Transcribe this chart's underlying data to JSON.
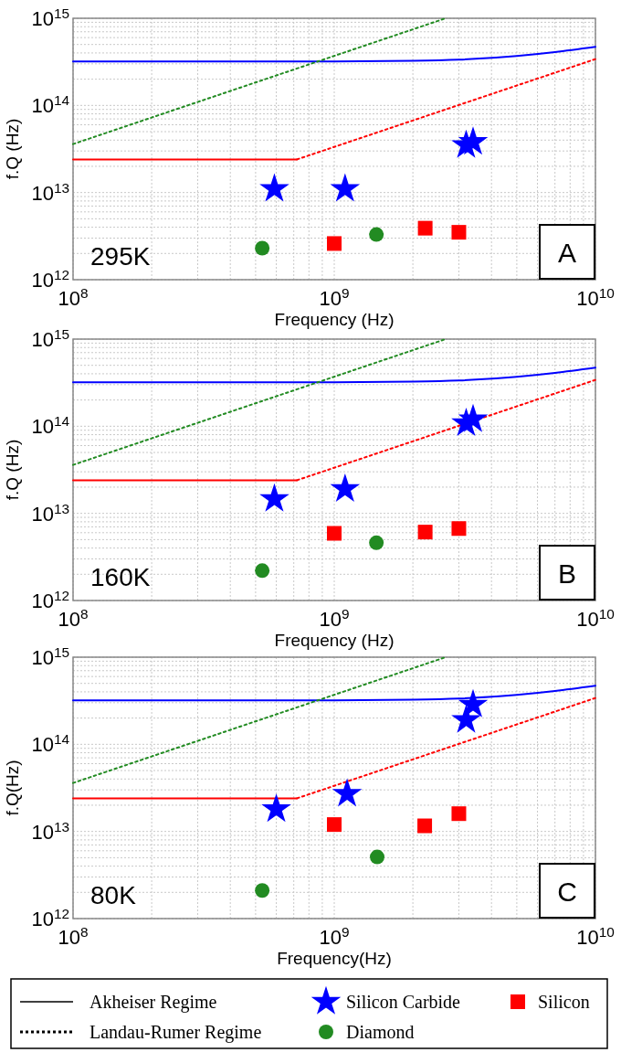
{
  "chart_data": [
    {
      "type": "scatter",
      "xlabel": "Frequency (Hz)",
      "ylabel": "f.Q (Hz)",
      "log": "xy",
      "grid": true,
      "xlim": [
        100000000.0,
        10000000000.0
      ],
      "ylim": [
        1000000000000.0,
        1000000000000000.0
      ],
      "xticks": [
        {
          "value": 100000000.0,
          "label": "10$^{8}$"
        },
        {
          "value": 200000000.0,
          "label": null
        },
        {
          "value": 300000000.0,
          "label": null
        },
        {
          "value": 400000000.0,
          "label": null
        },
        {
          "value": 500000000.0,
          "label": null
        },
        {
          "value": 600000000.0,
          "label": null
        },
        {
          "value": 700000000.0,
          "label": null
        },
        {
          "value": 800000000.0,
          "label": null
        },
        {
          "value": 900000000.0,
          "label": null
        },
        {
          "value": 1000000000.0,
          "label": "10$^{9}$"
        },
        {
          "value": 2000000000.0,
          "label": null
        },
        {
          "value": 3000000000.0,
          "label": null
        },
        {
          "value": 4000000000.0,
          "label": null
        },
        {
          "value": 5000000000.0,
          "label": null
        },
        {
          "value": 6000000000.0,
          "label": null
        },
        {
          "value": 7000000000.0,
          "label": null
        },
        {
          "value": 8000000000.0,
          "label": null
        },
        {
          "value": 9000000000.0,
          "label": null
        },
        {
          "value": 10000000000.0,
          "label": "10$^{10}$"
        }
      ],
      "yticks": [
        {
          "value": 1000000000000.0,
          "label": "10$^{12}$"
        },
        {
          "value": 2000000000000.0,
          "label": null
        },
        {
          "value": 3000000000000.0,
          "label": null
        },
        {
          "value": 4000000000000.0,
          "label": null
        },
        {
          "value": 5000000000000.0,
          "label": null
        },
        {
          "value": 6000000000000.0,
          "label": null
        },
        {
          "value": 7000000000000.0,
          "label": null
        },
        {
          "value": 8000000000000.0,
          "label": null
        },
        {
          "value": 9000000000000.0,
          "label": null
        },
        {
          "value": 10000000000000.0,
          "label": "10$^{13}$"
        },
        {
          "value": 20000000000000.0,
          "label": null
        },
        {
          "value": 30000000000000.0,
          "label": null
        },
        {
          "value": 40000000000000.0,
          "label": null
        },
        {
          "value": 50000000000000.0,
          "label": null
        },
        {
          "value": 60000000000000.0,
          "label": null
        },
        {
          "value": 70000000000000.0,
          "label": null
        },
        {
          "value": 80000000000000.0,
          "label": null
        },
        {
          "value": 90000000000000.0,
          "label": null
        },
        {
          "value": 100000000000000.0,
          "label": "10$^{14}$"
        },
        {
          "value": 200000000000000.0,
          "label": null
        },
        {
          "value": 300000000000000.0,
          "label": null
        },
        {
          "value": 400000000000000.0,
          "label": null
        },
        {
          "value": 500000000000000.0,
          "label": null
        },
        {
          "value": 600000000000000.0,
          "label": null
        },
        {
          "value": 700000000000000.0,
          "label": null
        },
        {
          "value": 800000000000000.0,
          "label": null
        },
        {
          "value": 900000000000000.0,
          "label": null
        },
        {
          "value": 1000000000000000.0,
          "label": "10$^{15}$"
        }
      ],
      "annotations": [
        "295K",
        "A"
      ],
      "series": [
        {
          "type": "line",
          "line_style": "solid",
          "color": "#0000ff",
          "x": [
            100000000.0,
            1000000000.0,
            2000000000.0,
            3000000000.0,
            5000000000.0,
            7000000000.0,
            10000000000.0
          ],
          "values": [
            320000000000000.0,
            320000000000000.0,
            325000000000000.0,
            335000000000000.0,
            370000000000000.0,
            410000000000000.0,
            470000000000000.0
          ]
        },
        {
          "type": "line",
          "line_style": "solid",
          "color": "#ff0000",
          "x": [
            100000000.0,
            720000000.0
          ],
          "values": [
            24000000000000.0,
            24000000000000.0
          ]
        },
        {
          "type": "line",
          "line_style": "dotted",
          "color": "#ff0000",
          "x": [
            720000000.0,
            10000000000.0
          ],
          "values": [
            24000000000000.0,
            340000000000000.0
          ]
        },
        {
          "type": "line",
          "line_style": "dotted",
          "color": "#228b22",
          "x": [
            100000000.0,
            2670000000.0
          ],
          "values": [
            36000000000000.0,
            1000000000000000.0
          ]
        },
        {
          "marker": "star",
          "color": "#0000ff",
          "x": [
            590000000.0,
            1100000000.0,
            3200000000.0,
            3400000000.0
          ],
          "values": [
            11000000000000.0,
            11000000000000.0,
            35000000000000.0,
            38000000000000.0
          ]
        },
        {
          "marker": "circle",
          "color": "#228b22",
          "x": [
            530000000.0,
            1450000000.0
          ],
          "values": [
            2300000000000.0,
            3300000000000.0
          ]
        },
        {
          "marker": "square",
          "color": "#ff0000",
          "x": [
            1000000000.0,
            2230000000.0,
            3000000000.0
          ],
          "values": [
            2600000000000.0,
            3900000000000.0,
            3500000000000.0
          ]
        }
      ]
    },
    {
      "type": "scatter",
      "xlabel": "Frequency (Hz)",
      "ylabel": "f.Q (Hz)",
      "log": "xy",
      "grid": true,
      "xlim": [
        100000000.0,
        10000000000.0
      ],
      "ylim": [
        1000000000000.0,
        1000000000000000.0
      ],
      "xticks": [
        {
          "value": 100000000.0,
          "label": "10$^{8}$"
        },
        {
          "value": 200000000.0,
          "label": null
        },
        {
          "value": 300000000.0,
          "label": null
        },
        {
          "value": 400000000.0,
          "label": null
        },
        {
          "value": 500000000.0,
          "label": null
        },
        {
          "value": 600000000.0,
          "label": null
        },
        {
          "value": 700000000.0,
          "label": null
        },
        {
          "value": 800000000.0,
          "label": null
        },
        {
          "value": 900000000.0,
          "label": null
        },
        {
          "value": 1000000000.0,
          "label": "10$^{9}$"
        },
        {
          "value": 2000000000.0,
          "label": null
        },
        {
          "value": 3000000000.0,
          "label": null
        },
        {
          "value": 4000000000.0,
          "label": null
        },
        {
          "value": 5000000000.0,
          "label": null
        },
        {
          "value": 6000000000.0,
          "label": null
        },
        {
          "value": 7000000000.0,
          "label": null
        },
        {
          "value": 8000000000.0,
          "label": null
        },
        {
          "value": 9000000000.0,
          "label": null
        },
        {
          "value": 10000000000.0,
          "label": "10$^{10}$"
        }
      ],
      "yticks": [
        {
          "value": 1000000000000.0,
          "label": "10$^{12}$"
        },
        {
          "value": 2000000000000.0,
          "label": null
        },
        {
          "value": 3000000000000.0,
          "label": null
        },
        {
          "value": 4000000000000.0,
          "label": null
        },
        {
          "value": 5000000000000.0,
          "label": null
        },
        {
          "value": 6000000000000.0,
          "label": null
        },
        {
          "value": 7000000000000.0,
          "label": null
        },
        {
          "value": 8000000000000.0,
          "label": null
        },
        {
          "value": 9000000000000.0,
          "label": null
        },
        {
          "value": 10000000000000.0,
          "label": "10$^{13}$"
        },
        {
          "value": 20000000000000.0,
          "label": null
        },
        {
          "value": 30000000000000.0,
          "label": null
        },
        {
          "value": 40000000000000.0,
          "label": null
        },
        {
          "value": 50000000000000.0,
          "label": null
        },
        {
          "value": 60000000000000.0,
          "label": null
        },
        {
          "value": 70000000000000.0,
          "label": null
        },
        {
          "value": 80000000000000.0,
          "label": null
        },
        {
          "value": 90000000000000.0,
          "label": null
        },
        {
          "value": 100000000000000.0,
          "label": "10$^{14}$"
        },
        {
          "value": 200000000000000.0,
          "label": null
        },
        {
          "value": 300000000000000.0,
          "label": null
        },
        {
          "value": 400000000000000.0,
          "label": null
        },
        {
          "value": 500000000000000.0,
          "label": null
        },
        {
          "value": 600000000000000.0,
          "label": null
        },
        {
          "value": 700000000000000.0,
          "label": null
        },
        {
          "value": 800000000000000.0,
          "label": null
        },
        {
          "value": 900000000000000.0,
          "label": null
        },
        {
          "value": 1000000000000000.0,
          "label": "10$^{15}$"
        }
      ],
      "annotations": [
        "160K",
        "B"
      ],
      "series": [
        {
          "type": "line",
          "line_style": "solid",
          "color": "#0000ff",
          "x": [
            100000000.0,
            1000000000.0,
            2000000000.0,
            3000000000.0,
            5000000000.0,
            7000000000.0,
            10000000000.0
          ],
          "values": [
            320000000000000.0,
            320000000000000.0,
            325000000000000.0,
            335000000000000.0,
            370000000000000.0,
            410000000000000.0,
            470000000000000.0
          ]
        },
        {
          "type": "line",
          "line_style": "solid",
          "color": "#ff0000",
          "x": [
            100000000.0,
            720000000.0
          ],
          "values": [
            24000000000000.0,
            24000000000000.0
          ]
        },
        {
          "type": "line",
          "line_style": "dotted",
          "color": "#ff0000",
          "x": [
            720000000.0,
            10000000000.0
          ],
          "values": [
            24000000000000.0,
            340000000000000.0
          ]
        },
        {
          "type": "line",
          "line_style": "dotted",
          "color": "#228b22",
          "x": [
            100000000.0,
            2670000000.0
          ],
          "values": [
            36000000000000.0,
            1000000000000000.0
          ]
        },
        {
          "marker": "star",
          "color": "#0000ff",
          "x": [
            590000000.0,
            1100000000.0,
            3200000000.0,
            3400000000.0
          ],
          "values": [
            14600000000000.0,
            19000000000000.0,
            108000000000000.0,
            120000000000000.0
          ]
        },
        {
          "marker": "circle",
          "color": "#228b22",
          "x": [
            530000000.0,
            1450000000.0
          ],
          "values": [
            2200000000000.0,
            4600000000000.0
          ]
        },
        {
          "marker": "square",
          "color": "#ff0000",
          "x": [
            1000000000.0,
            2230000000.0,
            3000000000.0
          ],
          "values": [
            5900000000000.0,
            6100000000000.0,
            6700000000000.0
          ]
        }
      ]
    },
    {
      "type": "scatter",
      "xlabel": "Frequency(Hz)",
      "ylabel": "f.Q(Hz)",
      "log": "xy",
      "grid": true,
      "legend": "bottom",
      "xlim": [
        100000000.0,
        10000000000.0
      ],
      "ylim": [
        1000000000000.0,
        1000000000000000.0
      ],
      "xticks": [
        {
          "value": 100000000.0,
          "label": "10$^{8}$"
        },
        {
          "value": 200000000.0,
          "label": null
        },
        {
          "value": 300000000.0,
          "label": null
        },
        {
          "value": 400000000.0,
          "label": null
        },
        {
          "value": 500000000.0,
          "label": null
        },
        {
          "value": 600000000.0,
          "label": null
        },
        {
          "value": 700000000.0,
          "label": null
        },
        {
          "value": 800000000.0,
          "label": null
        },
        {
          "value": 900000000.0,
          "label": null
        },
        {
          "value": 1000000000.0,
          "label": "10$^{9}$"
        },
        {
          "value": 2000000000.0,
          "label": null
        },
        {
          "value": 3000000000.0,
          "label": null
        },
        {
          "value": 4000000000.0,
          "label": null
        },
        {
          "value": 5000000000.0,
          "label": null
        },
        {
          "value": 6000000000.0,
          "label": null
        },
        {
          "value": 7000000000.0,
          "label": null
        },
        {
          "value": 8000000000.0,
          "label": null
        },
        {
          "value": 9000000000.0,
          "label": null
        },
        {
          "value": 10000000000.0,
          "label": "10$^{10}$"
        }
      ],
      "yticks": [
        {
          "value": 1000000000000.0,
          "label": "10$^{12}$"
        },
        {
          "value": 2000000000000.0,
          "label": null
        },
        {
          "value": 3000000000000.0,
          "label": null
        },
        {
          "value": 4000000000000.0,
          "label": null
        },
        {
          "value": 5000000000000.0,
          "label": null
        },
        {
          "value": 6000000000000.0,
          "label": null
        },
        {
          "value": 7000000000000.0,
          "label": null
        },
        {
          "value": 8000000000000.0,
          "label": null
        },
        {
          "value": 9000000000000.0,
          "label": null
        },
        {
          "value": 10000000000000.0,
          "label": "10$^{13}$"
        },
        {
          "value": 20000000000000.0,
          "label": null
        },
        {
          "value": 30000000000000.0,
          "label": null
        },
        {
          "value": 40000000000000.0,
          "label": null
        },
        {
          "value": 50000000000000.0,
          "label": null
        },
        {
          "value": 60000000000000.0,
          "label": null
        },
        {
          "value": 70000000000000.0,
          "label": null
        },
        {
          "value": 80000000000000.0,
          "label": null
        },
        {
          "value": 90000000000000.0,
          "label": null
        },
        {
          "value": 100000000000000.0,
          "label": "10$^{14}$"
        },
        {
          "value": 200000000000000.0,
          "label": null
        },
        {
          "value": 300000000000000.0,
          "label": null
        },
        {
          "value": 400000000000000.0,
          "label": null
        },
        {
          "value": 500000000000000.0,
          "label": null
        },
        {
          "value": 600000000000000.0,
          "label": null
        },
        {
          "value": 700000000000000.0,
          "label": null
        },
        {
          "value": 800000000000000.0,
          "label": null
        },
        {
          "value": 900000000000000.0,
          "label": null
        },
        {
          "value": 1000000000000000.0,
          "label": "10$^{15}$"
        }
      ],
      "annotations": [
        "80K",
        "C",
        "Akheiser Regime",
        "Landau-Rumer Regime"
      ],
      "series": [
        {
          "type": "line",
          "line_style": "solid",
          "color": "#0000ff",
          "x": [
            100000000.0,
            1000000000.0,
            2000000000.0,
            3000000000.0,
            5000000000.0,
            7000000000.0,
            10000000000.0
          ],
          "values": [
            320000000000000.0,
            320000000000000.0,
            325000000000000.0,
            335000000000000.0,
            370000000000000.0,
            410000000000000.0,
            470000000000000.0
          ]
        },
        {
          "type": "line",
          "line_style": "solid",
          "color": "#ff0000",
          "x": [
            100000000.0,
            720000000.0
          ],
          "values": [
            24000000000000.0,
            24000000000000.0
          ]
        },
        {
          "type": "line",
          "line_style": "dotted",
          "color": "#ff0000",
          "x": [
            720000000.0,
            10000000000.0
          ],
          "values": [
            24000000000000.0,
            340000000000000.0
          ]
        },
        {
          "type": "line",
          "line_style": "dotted",
          "color": "#228b22",
          "x": [
            100000000.0,
            2670000000.0
          ],
          "values": [
            36000000000000.0,
            1000000000000000.0
          ]
        },
        {
          "name": "Silicon Carbide",
          "marker": "star",
          "color": "#0000ff",
          "x": [
            600000000.0,
            1120000000.0,
            3200000000.0,
            3400000000.0
          ],
          "values": [
            18000000000000.0,
            27000000000000.0,
            190000000000000.0,
            285000000000000.0
          ]
        },
        {
          "name": "Diamond",
          "marker": "circle",
          "color": "#228b22",
          "x": [
            530000000.0,
            1460000000.0
          ],
          "values": [
            2100000000000.0,
            5100000000000.0
          ]
        },
        {
          "name": "Silicon",
          "marker": "square",
          "color": "#ff0000",
          "x": [
            1000000000.0,
            2220000000.0,
            3000000000.0
          ],
          "values": [
            12000000000000.0,
            11600000000000.0,
            16000000000000.0
          ]
        }
      ]
    }
  ]
}
